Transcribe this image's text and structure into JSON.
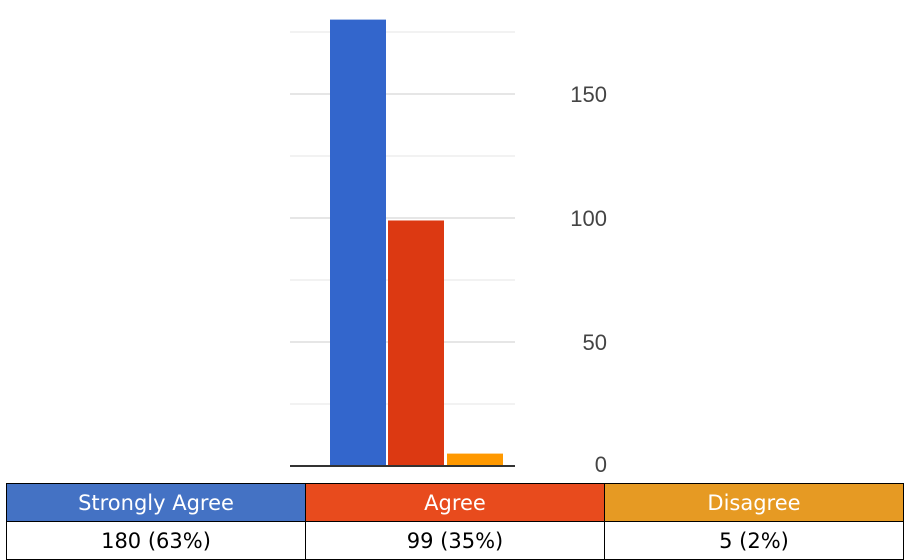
{
  "chart_data": {
    "type": "bar",
    "categories": [
      "Strongly Agree",
      "Agree",
      "Disagree"
    ],
    "values": [
      180,
      99,
      5
    ],
    "percents": [
      "63%",
      "35%",
      "2%"
    ],
    "value_labels": [
      "180 (63%)",
      "99 (35%)",
      "5 (2%)"
    ],
    "colors": [
      "#3366cc",
      "#dc3912",
      "#ff9900"
    ],
    "legend_colors": [
      "#4472c4",
      "#e84b1d",
      "#e69a23"
    ],
    "y_ticks": [
      0,
      50,
      100,
      150
    ],
    "ylim": [
      0,
      180
    ],
    "y_axis_side": "right",
    "grid": true,
    "legend": "table-below"
  }
}
